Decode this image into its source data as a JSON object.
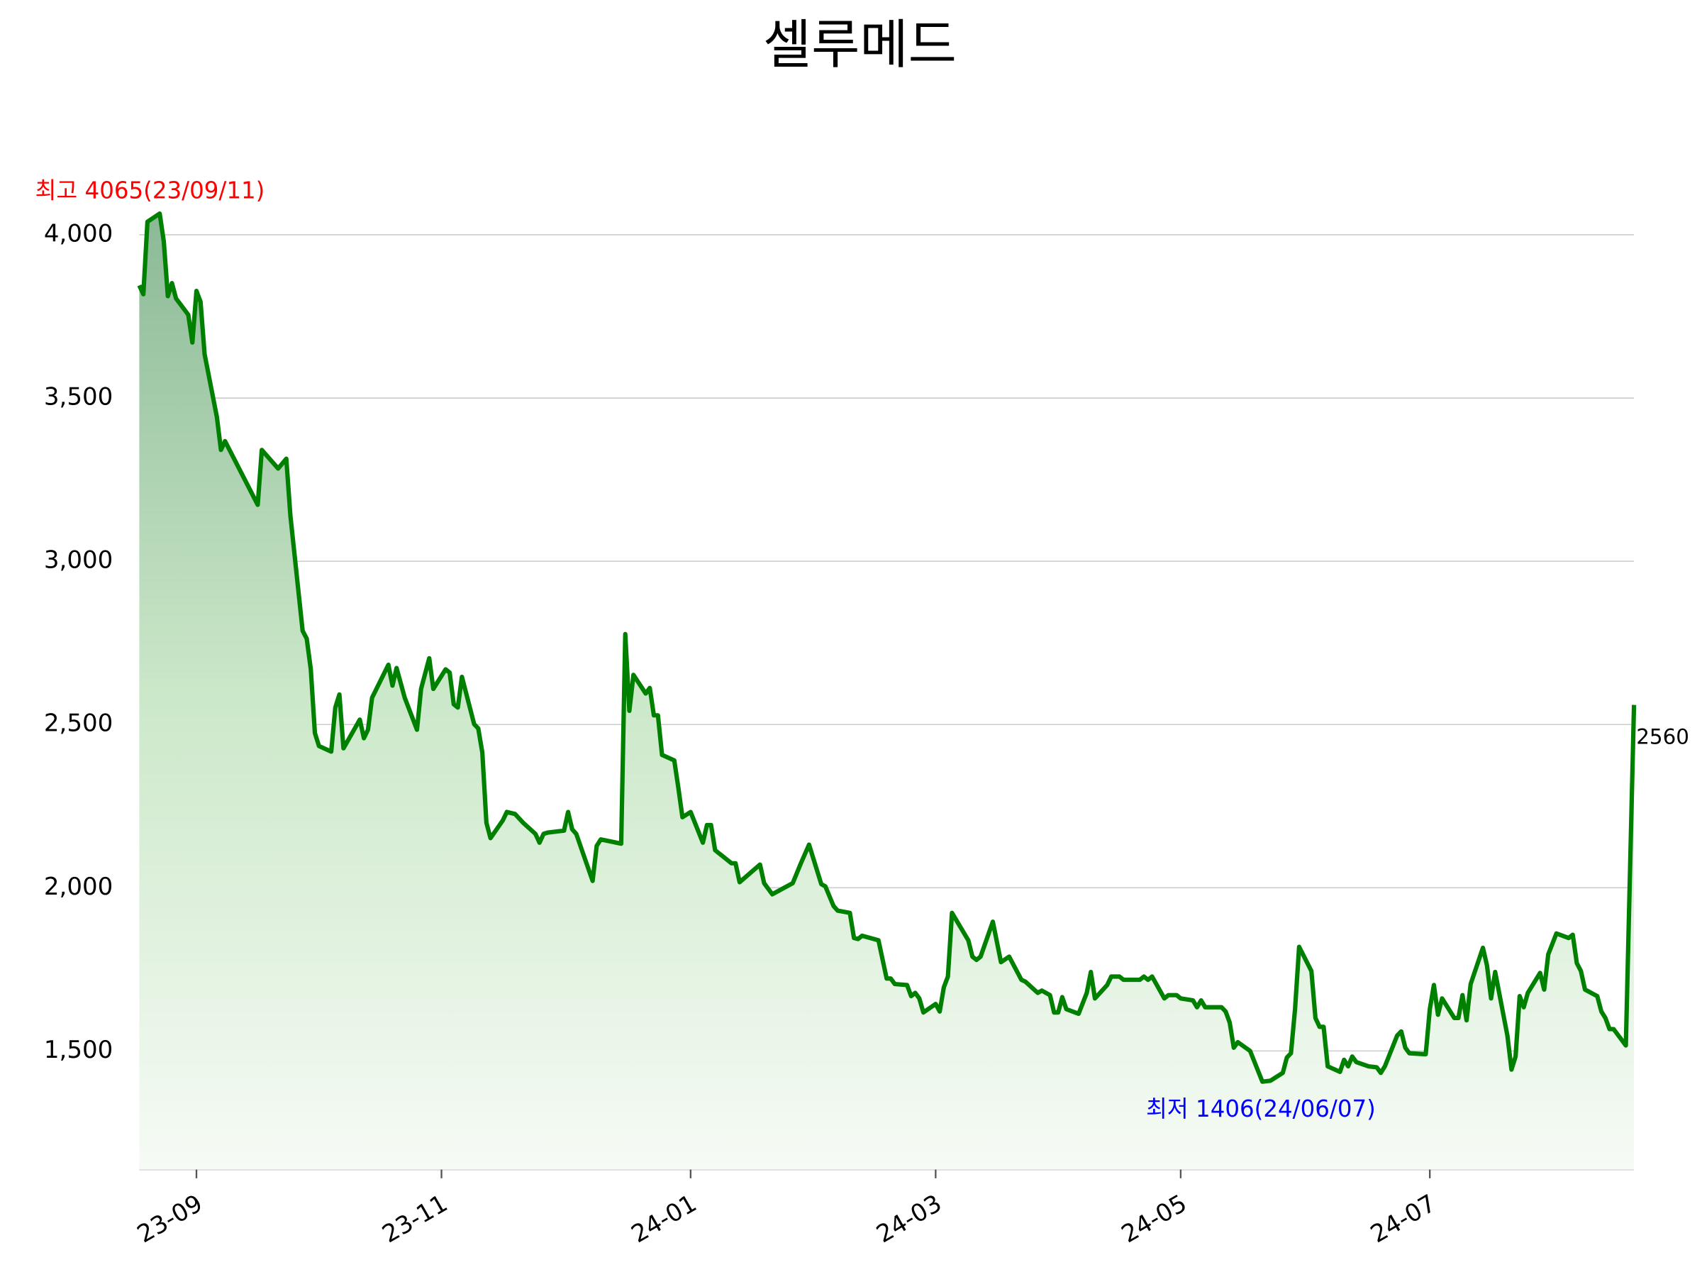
{
  "chart_data": {
    "type": "line",
    "title": "셀루메드",
    "x": [
      "2023-09-06",
      "2023-09-07",
      "2023-09-08",
      "2023-09-11",
      "2023-09-12",
      "2023-09-13",
      "2023-09-14",
      "2023-09-15",
      "2023-09-18",
      "2023-09-19",
      "2023-09-20",
      "2023-09-21",
      "2023-09-22",
      "2023-09-25",
      "2023-09-26",
      "2023-09-27",
      "2023-10-05",
      "2023-10-06",
      "2023-10-10",
      "2023-10-12",
      "2023-10-13",
      "2023-10-16",
      "2023-10-17",
      "2023-10-18",
      "2023-10-19",
      "2023-10-20",
      "2023-10-23",
      "2023-10-24",
      "2023-10-25",
      "2023-10-26",
      "2023-10-30",
      "2023-10-31",
      "2023-11-01",
      "2023-11-02",
      "2023-11-06",
      "2023-11-07",
      "2023-11-08",
      "2023-11-10",
      "2023-11-13",
      "2023-11-14",
      "2023-11-16",
      "2023-11-17",
      "2023-11-20",
      "2023-11-21",
      "2023-11-22",
      "2023-11-23",
      "2023-11-24",
      "2023-11-27",
      "2023-11-28",
      "2023-11-29",
      "2023-11-30",
      "2023-12-01",
      "2023-12-04",
      "2023-12-05",
      "2023-12-07",
      "2023-12-09",
      "2023-12-12",
      "2023-12-13",
      "2023-12-14",
      "2023-12-15",
      "2023-12-19",
      "2023-12-20",
      "2023-12-21",
      "2023-12-22",
      "2023-12-26",
      "2023-12-27",
      "2023-12-28",
      "2024-01-02",
      "2024-01-03",
      "2024-01-04",
      "2024-01-05",
      "2024-01-08",
      "2024-01-09",
      "2024-01-10",
      "2024-01-11",
      "2024-01-12",
      "2024-01-15",
      "2024-01-16",
      "2024-01-17",
      "2024-01-19",
      "2024-01-22",
      "2024-01-23",
      "2024-01-24",
      "2024-01-25",
      "2024-01-29",
      "2024-01-30",
      "2024-01-31",
      "2024-02-05",
      "2024-02-06",
      "2024-02-08",
      "2024-02-13",
      "2024-02-15",
      "2024-02-17",
      "2024-02-20",
      "2024-02-21",
      "2024-02-23",
      "2024-02-24",
      "2024-02-27",
      "2024-02-28",
      "2024-02-29",
      "2024-03-01",
      "2024-03-05",
      "2024-03-07",
      "2024-03-08",
      "2024-03-09",
      "2024-03-12",
      "2024-03-13",
      "2024-03-14",
      "2024-03-15",
      "2024-03-16",
      "2024-03-19",
      "2024-03-20",
      "2024-03-21",
      "2024-03-22",
      "2024-03-23",
      "2024-03-27",
      "2024-03-28",
      "2024-03-29",
      "2024-03-30",
      "2024-04-02",
      "2024-04-04",
      "2024-04-06",
      "2024-04-09",
      "2024-04-10",
      "2024-04-13",
      "2024-04-14",
      "2024-04-16",
      "2024-04-17",
      "2024-04-18",
      "2024-04-19",
      "2024-04-20",
      "2024-04-23",
      "2024-04-25",
      "2024-04-26",
      "2024-04-27",
      "2024-04-30",
      "2024-05-01",
      "2024-05-03",
      "2024-05-04",
      "2024-05-08",
      "2024-05-09",
      "2024-05-10",
      "2024-05-11",
      "2024-05-14",
      "2024-05-15",
      "2024-05-17",
      "2024-05-18",
      "2024-05-21",
      "2024-05-22",
      "2024-05-23",
      "2024-05-24",
      "2024-05-28",
      "2024-05-29",
      "2024-05-30",
      "2024-05-31",
      "2024-06-01",
      "2024-06-04",
      "2024-06-07",
      "2024-06-09",
      "2024-06-12",
      "2024-06-13",
      "2024-06-14",
      "2024-06-15",
      "2024-06-16",
      "2024-06-19",
      "2024-06-20",
      "2024-06-21",
      "2024-06-22",
      "2024-06-23",
      "2024-06-26",
      "2024-06-27",
      "2024-06-28",
      "2024-06-29",
      "2024-06-30",
      "2024-07-03",
      "2024-07-05",
      "2024-07-06",
      "2024-07-07",
      "2024-07-10",
      "2024-07-11",
      "2024-07-12",
      "2024-07-13",
      "2024-07-17",
      "2024-07-18",
      "2024-07-19",
      "2024-07-20",
      "2024-07-21",
      "2024-07-24",
      "2024-07-25",
      "2024-07-26",
      "2024-07-27",
      "2024-07-28",
      "2024-07-31",
      "2024-08-01",
      "2024-08-02",
      "2024-08-03",
      "2024-08-06",
      "2024-08-07",
      "2024-08-08",
      "2024-08-09",
      "2024-08-10",
      "2024-08-11",
      "2024-08-14",
      "2024-08-15",
      "2024-08-16",
      "2024-08-18",
      "2024-08-21",
      "2024-08-22",
      "2024-08-23",
      "2024-08-24",
      "2024-08-25",
      "2024-08-28",
      "2024-08-29",
      "2024-08-30",
      "2024-08-31",
      "2024-09-01",
      "2024-09-04",
      "2024-09-06"
    ],
    "series": [
      {
        "color": "#008000",
        "values": [
          3845,
          3818,
          4040,
          4065,
          3980,
          3812,
          3852,
          3805,
          3755,
          3670,
          3828,
          3795,
          3634,
          3442,
          3341,
          3368,
          3173,
          3341,
          3284,
          3314,
          3140,
          2787,
          2763,
          2669,
          2474,
          2434,
          2417,
          2552,
          2592,
          2427,
          2515,
          2458,
          2484,
          2582,
          2683,
          2619,
          2673,
          2582,
          2484,
          2609,
          2703,
          2609,
          2669,
          2659,
          2562,
          2552,
          2646,
          2501,
          2488,
          2414,
          2199,
          2152,
          2206,
          2232,
          2226,
          2199,
          2165,
          2138,
          2165,
          2169,
          2175,
          2232,
          2179,
          2165,
          2021,
          2128,
          2148,
          2135,
          2777,
          2542,
          2652,
          2595,
          2612,
          2528,
          2528,
          2407,
          2390,
          2306,
          2216,
          2232,
          2138,
          2192,
          2192,
          2115,
          2075,
          2075,
          2017,
          2071,
          2014,
          1980,
          2014,
          2075,
          2132,
          2011,
          2004,
          1944,
          1930,
          1923,
          1846,
          1843,
          1853,
          1839,
          1722,
          1722,
          1705,
          1702,
          1668,
          1678,
          1661,
          1618,
          1644,
          1621,
          1695,
          1728,
          1923,
          1839,
          1789,
          1779,
          1789,
          1896,
          1772,
          1789,
          1718,
          1712,
          1678,
          1685,
          1671,
          1618,
          1618,
          1665,
          1628,
          1614,
          1678,
          1742,
          1661,
          1702,
          1728,
          1728,
          1718,
          1718,
          1728,
          1718,
          1728,
          1661,
          1671,
          1671,
          1661,
          1655,
          1634,
          1655,
          1634,
          1634,
          1621,
          1587,
          1510,
          1527,
          1500,
          1406,
          1409,
          1433,
          1480,
          1493,
          1628,
          1819,
          1745,
          1601,
          1574,
          1574,
          1453,
          1436,
          1473,
          1453,
          1483,
          1466,
          1453,
          1450,
          1433,
          1453,
          1547,
          1560,
          1510,
          1493,
          1490,
          1628,
          1702,
          1611,
          1661,
          1601,
          1601,
          1671,
          1594,
          1705,
          1816,
          1762,
          1661,
          1742,
          1547,
          1443,
          1483,
          1668,
          1634,
          1678,
          1739,
          1688,
          1796,
          1860,
          1846,
          1856,
          1769,
          1745,
          1688,
          1668,
          1621,
          1601,
          1567,
          1567,
          1517,
          2560
        ]
      }
    ],
    "xlim": [
      "2023-09-06",
      "2024-09-06"
    ],
    "xticks": [
      {
        "value": "2023-09-20",
        "label": "23-09"
      },
      {
        "value": "2023-11-19",
        "label": "23-11"
      },
      {
        "value": "2024-01-19",
        "label": "24-01"
      },
      {
        "value": "2024-03-19",
        "label": "24-03"
      },
      {
        "value": "2024-05-18",
        "label": "24-05"
      },
      {
        "value": "2024-07-18",
        "label": "24-07"
      }
    ],
    "ylim": [
      1137,
      4200
    ],
    "yticks": [
      {
        "value": 1500,
        "label": "1,500"
      },
      {
        "value": 2000,
        "label": "2,000"
      },
      {
        "value": 2500,
        "label": "2,500"
      },
      {
        "value": 3000,
        "label": "3,000"
      },
      {
        "value": 3500,
        "label": "3,500"
      },
      {
        "value": 4000,
        "label": "4,000"
      }
    ],
    "grid": true,
    "annotations": [
      {
        "text": "최고 4065(23/09/11)",
        "color": "#ff0000"
      },
      {
        "text": "최저 1406(24/06/07)",
        "color": "#0000ff"
      }
    ]
  }
}
